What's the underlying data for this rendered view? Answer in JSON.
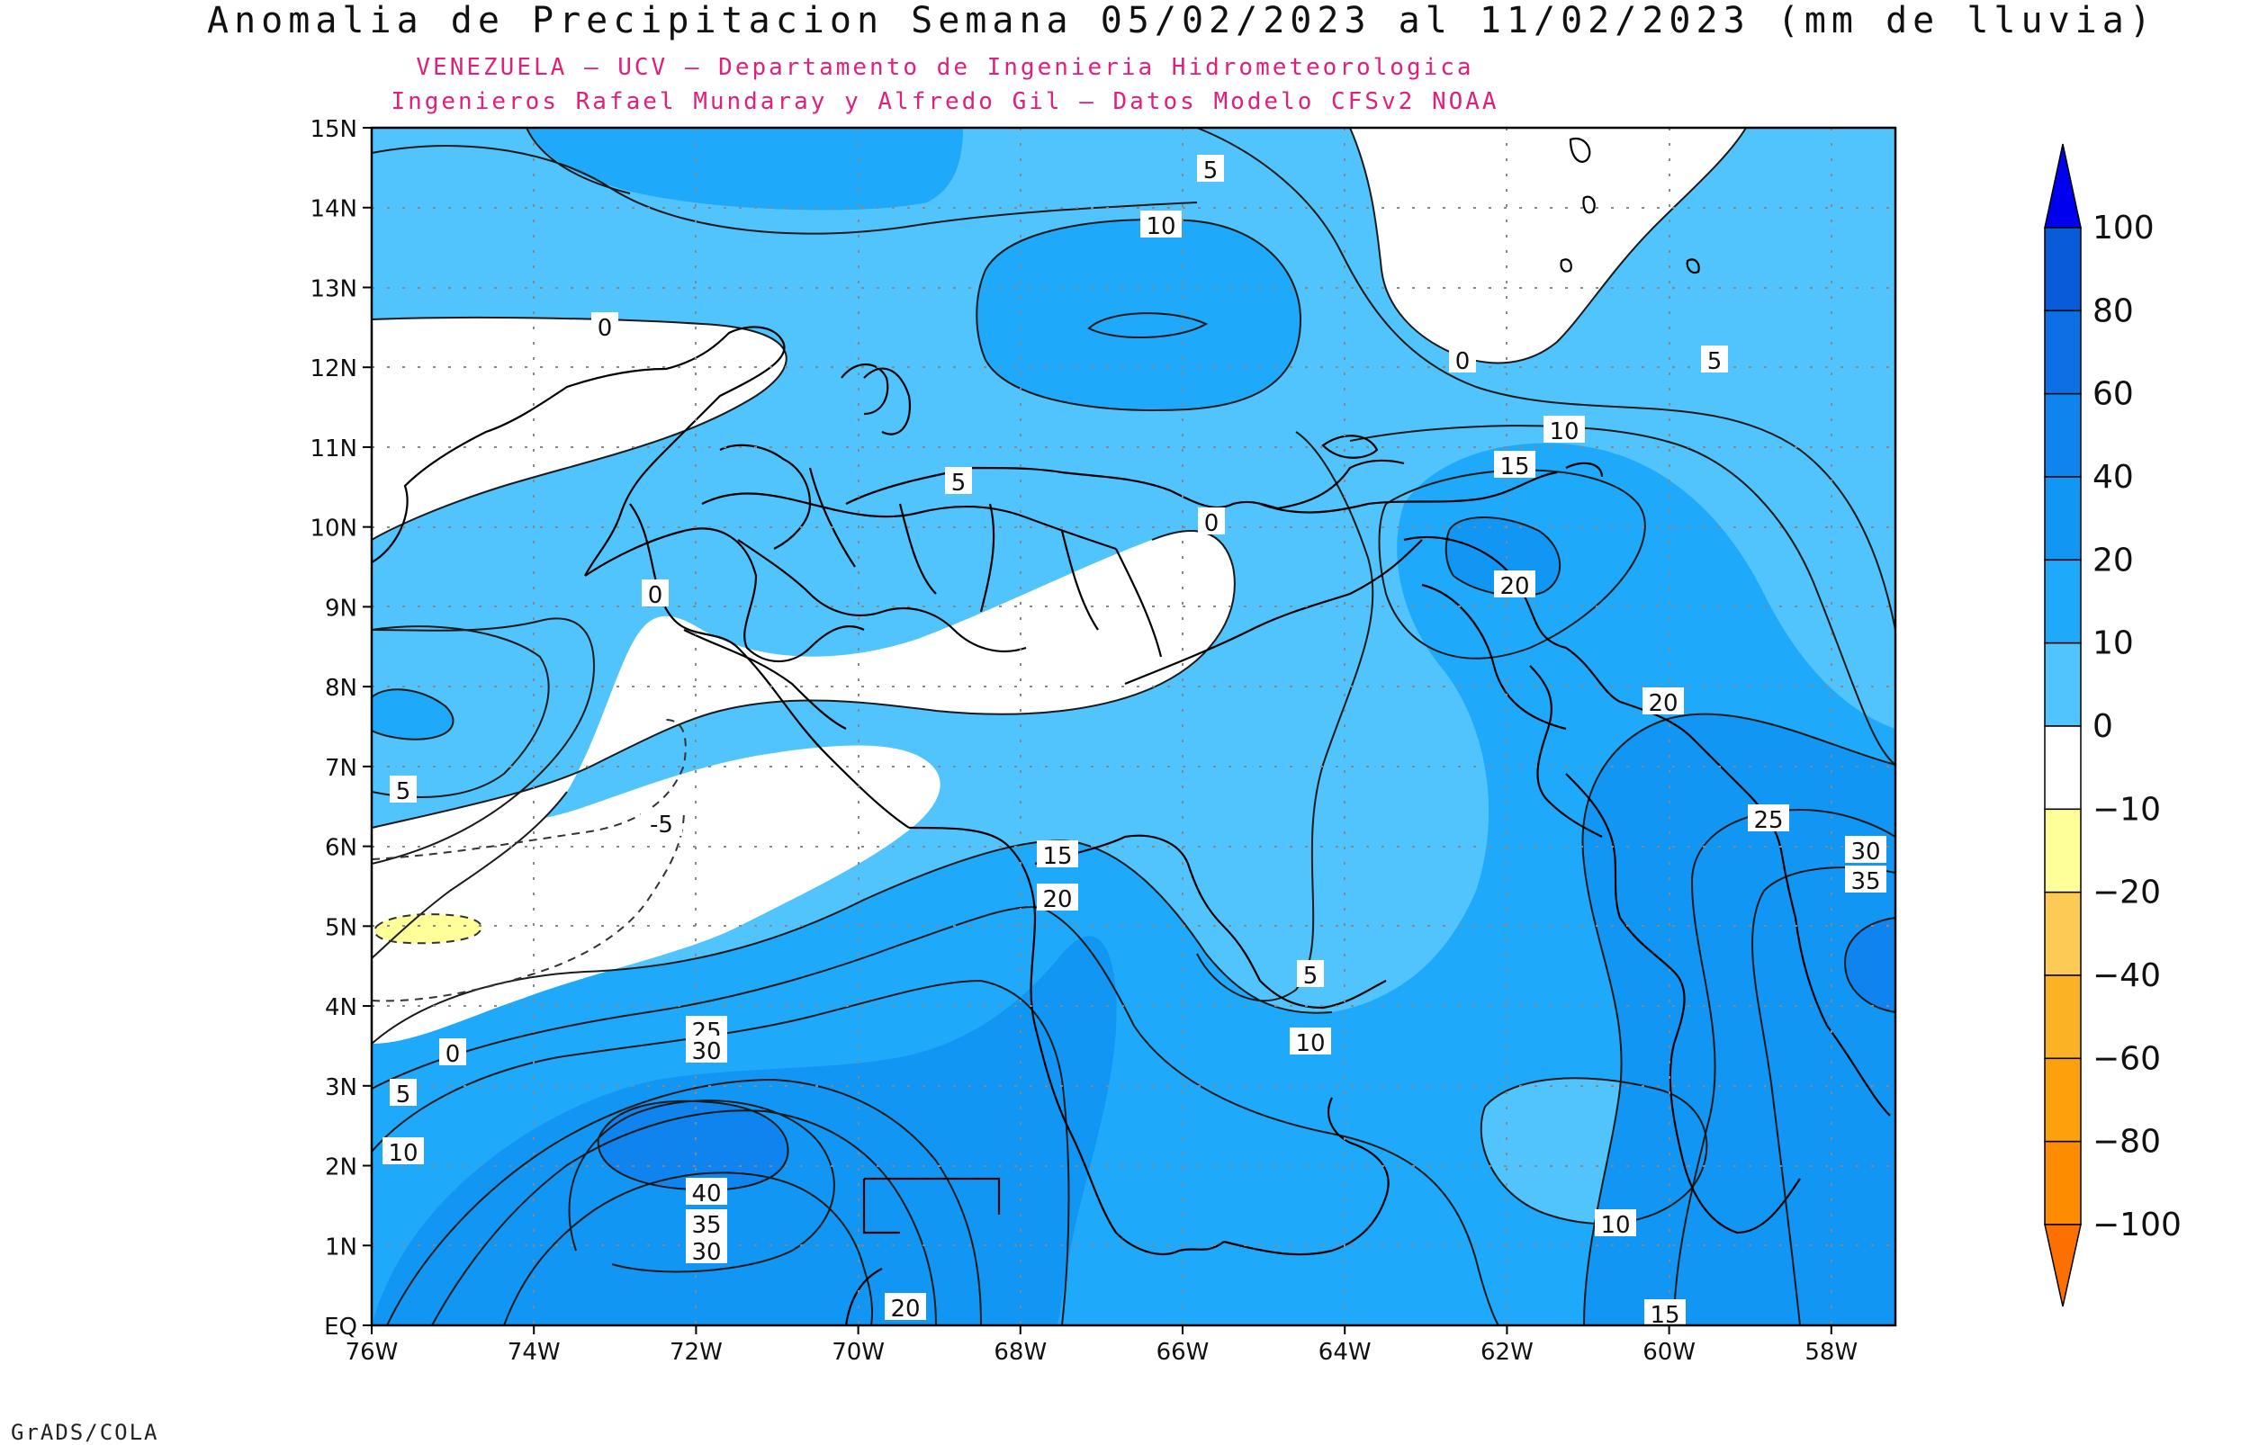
{
  "title": "Anomalia de Precipitacion Semana 05/02/2023 al 11/02/2023 (mm de lluvia)",
  "subtitle_1": "VENEZUELA – UCV – Departamento de Ingenieria Hidrometeorologica",
  "subtitle_2": "Ingenieros Rafael Mundaray y Alfredo Gil – Datos Modelo CFSv2 NOAA",
  "credit": "GrADS/COLA",
  "map": {
    "lat_labels": [
      "EQ",
      "1N",
      "2N",
      "3N",
      "4N",
      "5N",
      "6N",
      "7N",
      "8N",
      "9N",
      "10N",
      "11N",
      "12N",
      "13N",
      "14N",
      "15N"
    ],
    "lon_labels": [
      "76W",
      "74W",
      "72W",
      "70W",
      "68W",
      "66W",
      "64W",
      "62W",
      "60W",
      "58W"
    ],
    "contour_labels": [
      "5",
      "10",
      "0",
      "0",
      "5",
      "10",
      "15",
      "20",
      "5",
      "0",
      "0",
      "5",
      "-5",
      "0",
      "5",
      "10",
      "25",
      "30",
      "40",
      "35",
      "30",
      "20",
      "15",
      "20",
      "5",
      "10",
      "20",
      "25",
      "30",
      "35",
      "10",
      "15"
    ]
  },
  "legend": {
    "levels": [
      "100",
      "80",
      "60",
      "40",
      "20",
      "10",
      "0",
      "-10",
      "-20",
      "-40",
      "-60",
      "-80",
      "-100"
    ],
    "colors": {
      "above_100": "#0000ee",
      "80_100": "#0a5bd8",
      "60_80": "#0c6fe4",
      "40_60": "#0f84ee",
      "20_40": "#1296f3",
      "10_20": "#1fa9fb",
      "0_10": "#52c4fd",
      "-10_0": "#ffffff",
      "-20_-10": "#ffff99",
      "-40_-20": "#fdca55",
      "-60_-40": "#fcb225",
      "-80_-60": "#fca10c",
      "-100_-80": "#fd8c00",
      "below_-100": "#fd7000"
    }
  }
}
